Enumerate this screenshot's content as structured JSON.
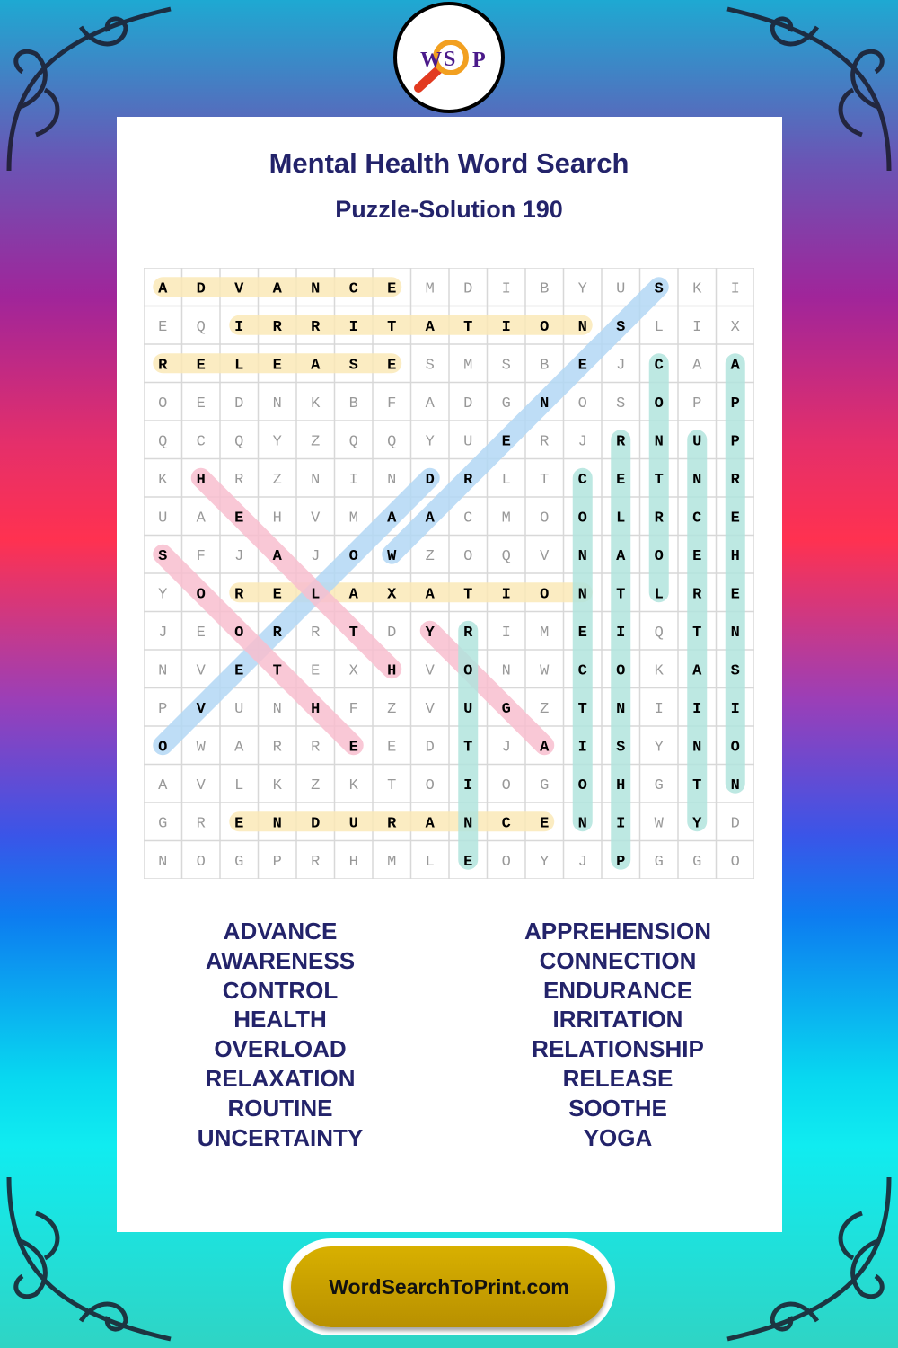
{
  "logo": {
    "letters": [
      "W",
      "S",
      "P"
    ]
  },
  "title": "Mental Health Word Search",
  "subtitle": "Puzzle-Solution 190",
  "grid": [
    "ADVANCEMDIBYUSKI",
    "EQIRRITATIONSLIX",
    "RELEASESMSBEJCAA",
    "OEDNKBFADGNOSOPP",
    "QCQYZQQYUERJRNUP",
    "KHRZNINDRLTCETNR",
    "UAEHVMAACMOOLRCE",
    "SFJAJOWZOQVNAOEH",
    "YORELAXATIONTLRE",
    "JEORRTDYRIMEIQTN",
    "NVETEXHVONWCOKAS",
    "PVUNHFZVUGZTNIII",
    "OWARREEDTJAISYNO",
    "AVLKZKTOIOGOHGTN",
    "GRENDURANCENIWYD",
    "NOGPRHMLEOYJPGGO"
  ],
  "solution": [
    {
      "word": "ADVANCE",
      "start": [
        0,
        0
      ],
      "end": [
        0,
        6
      ],
      "color": "#fbe9b8"
    },
    {
      "word": "IRRITATION",
      "start": [
        1,
        2
      ],
      "end": [
        1,
        11
      ],
      "color": "#fbe9b8"
    },
    {
      "word": "RELEASE",
      "start": [
        2,
        0
      ],
      "end": [
        2,
        6
      ],
      "color": "#fbe9b8"
    },
    {
      "word": "RELAXATION",
      "start": [
        8,
        2
      ],
      "end": [
        8,
        11
      ],
      "color": "#fbe9b8"
    },
    {
      "word": "ENDURANCE",
      "start": [
        14,
        2
      ],
      "end": [
        14,
        10
      ],
      "color": "#fbe9b8"
    },
    {
      "word": "AWARENESS",
      "start": [
        7,
        6
      ],
      "end": [
        0,
        13
      ],
      "color": "#b3d8f5"
    },
    {
      "word": "OVERLOAD",
      "start": [
        12,
        0
      ],
      "end": [
        5,
        7
      ],
      "color": "#b3d8f5"
    },
    {
      "word": "HEALTH",
      "start": [
        5,
        1
      ],
      "end": [
        10,
        6
      ],
      "color": "#f8bfcf"
    },
    {
      "word": "SOOTHE",
      "start": [
        7,
        0
      ],
      "end": [
        12,
        5
      ],
      "color": "#f8bfcf"
    },
    {
      "word": "YOGA",
      "start": [
        9,
        7
      ],
      "end": [
        12,
        10
      ],
      "color": "#f8bfcf"
    },
    {
      "word": "ROUTINE",
      "start": [
        9,
        8
      ],
      "end": [
        15,
        8
      ],
      "color": "#b2e4de"
    },
    {
      "word": "CONNECTION",
      "start": [
        5,
        11
      ],
      "end": [
        14,
        11
      ],
      "color": "#b2e4de"
    },
    {
      "word": "RELATIONSHIP",
      "start": [
        4,
        12
      ],
      "end": [
        15,
        12
      ],
      "color": "#b2e4de"
    },
    {
      "word": "CONTROL",
      "start": [
        2,
        13
      ],
      "end": [
        8,
        13
      ],
      "color": "#b2e4de"
    },
    {
      "word": "UNCERTAINTY",
      "start": [
        4,
        14
      ],
      "end": [
        14,
        14
      ],
      "color": "#b2e4de"
    },
    {
      "word": "APPREHENSION",
      "start": [
        2,
        15
      ],
      "end": [
        13,
        15
      ],
      "color": "#b2e4de"
    }
  ],
  "word_list_left": [
    "ADVANCE",
    "AWARENESS",
    "CONTROL",
    "HEALTH",
    "OVERLOAD",
    "RELAXATION",
    "ROUTINE",
    "UNCERTAINTY"
  ],
  "word_list_right": [
    "APPREHENSION",
    "CONNECTION",
    "ENDURANCE",
    "IRRITATION",
    "RELATIONSHIP",
    "RELEASE",
    "SOOTHE",
    "YOGA"
  ],
  "footer": "WordSearchToPrint.com"
}
